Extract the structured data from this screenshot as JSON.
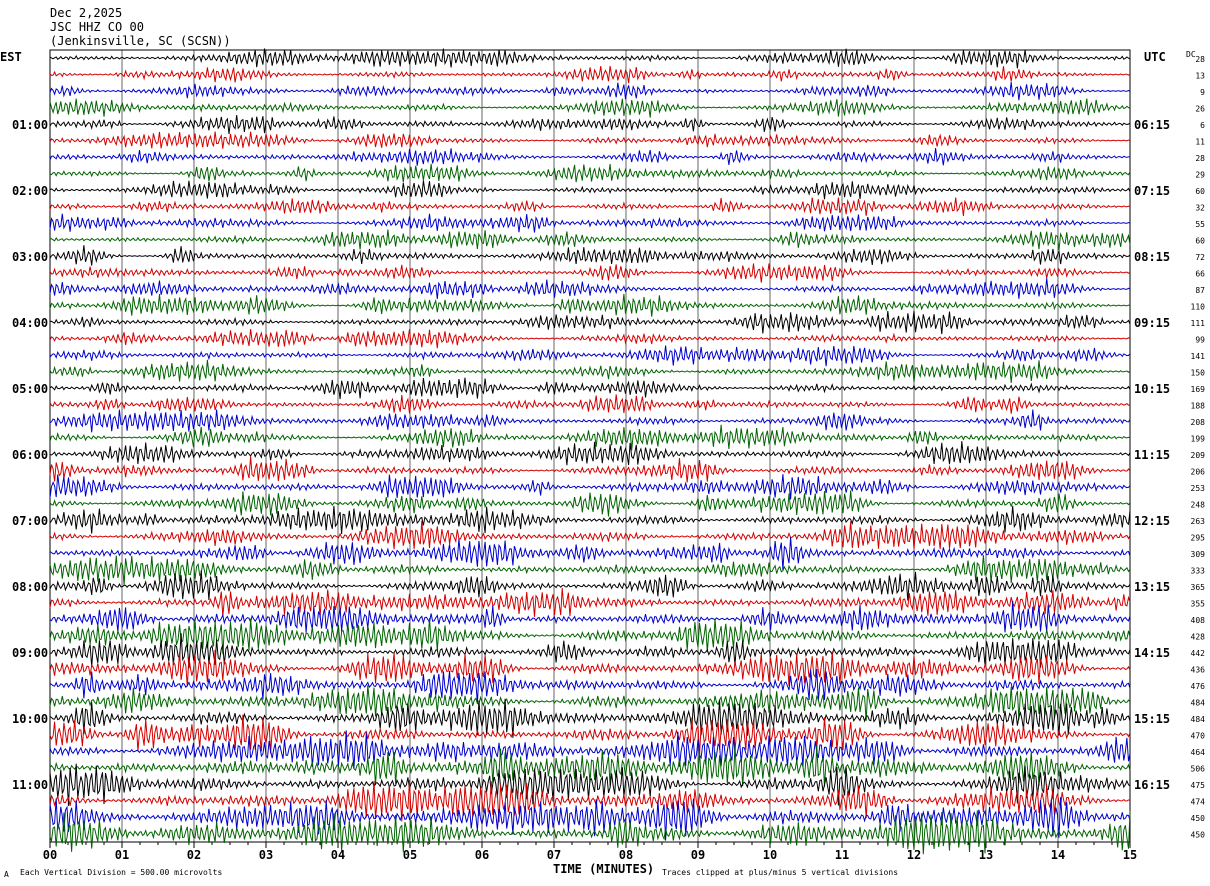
{
  "header": {
    "date": "Dec 2,2025",
    "station": "JSC HHZ CO 00",
    "location": "(Jenkinsville, SC (SCSN))"
  },
  "left_tz": "EST",
  "right_tz": "UTC",
  "dc_label": "DC",
  "footer": {
    "scale_note": "Each Vertical Division =  500.00 microvolts",
    "x_axis_title": "TIME (MINUTES)",
    "clip_note": "Traces clipped at plus/minus 5 vertical divisions",
    "corner_mark": "A"
  },
  "colors": {
    "trace_cycle": [
      "#000000",
      "#d40000",
      "#0000cc",
      "#006400"
    ],
    "grid": "#000000"
  },
  "chart_data": {
    "type": "line",
    "subtype": "helicorder",
    "x_ticks": [
      "00",
      "01",
      "02",
      "03",
      "04",
      "05",
      "06",
      "07",
      "08",
      "09",
      "10",
      "11",
      "12",
      "13",
      "14",
      "15"
    ],
    "xlim": [
      0,
      15
    ],
    "row_minutes": 15,
    "rows": 48,
    "left_labels": [
      {
        "row": 4,
        "text": "01:00"
      },
      {
        "row": 8,
        "text": "02:00"
      },
      {
        "row": 12,
        "text": "03:00"
      },
      {
        "row": 16,
        "text": "04:00"
      },
      {
        "row": 20,
        "text": "05:00"
      },
      {
        "row": 24,
        "text": "06:00"
      },
      {
        "row": 28,
        "text": "07:00"
      },
      {
        "row": 32,
        "text": "08:00"
      },
      {
        "row": 36,
        "text": "09:00"
      },
      {
        "row": 40,
        "text": "10:00"
      },
      {
        "row": 44,
        "text": "11:00"
      }
    ],
    "right_labels": [
      {
        "row": 4,
        "text": "06:15"
      },
      {
        "row": 8,
        "text": "07:15"
      },
      {
        "row": 12,
        "text": "08:15"
      },
      {
        "row": 16,
        "text": "09:15"
      },
      {
        "row": 20,
        "text": "10:15"
      },
      {
        "row": 24,
        "text": "11:15"
      },
      {
        "row": 28,
        "text": "12:15"
      },
      {
        "row": 32,
        "text": "13:15"
      },
      {
        "row": 36,
        "text": "14:15"
      },
      {
        "row": 40,
        "text": "15:15"
      },
      {
        "row": 44,
        "text": "16:15"
      }
    ],
    "dc_offsets": [
      28,
      13,
      9,
      26,
      6,
      11,
      28,
      29,
      60,
      32,
      55,
      60,
      72,
      66,
      87,
      110,
      111,
      99,
      141,
      150,
      169,
      188,
      208,
      199,
      209,
      206,
      253,
      248,
      263,
      295,
      309,
      333,
      365,
      355,
      408,
      428,
      442,
      436,
      476,
      484,
      484,
      470,
      464,
      506,
      475,
      474,
      450,
      450
    ],
    "trace_amplitude": [
      0.3,
      0.28,
      0.28,
      0.3,
      0.3,
      0.28,
      0.28,
      0.3,
      0.3,
      0.3,
      0.3,
      0.32,
      0.32,
      0.3,
      0.3,
      0.34,
      0.34,
      0.3,
      0.32,
      0.34,
      0.34,
      0.34,
      0.36,
      0.36,
      0.38,
      0.4,
      0.4,
      0.42,
      0.44,
      0.46,
      0.48,
      0.44,
      0.46,
      0.48,
      0.5,
      0.52,
      0.52,
      0.54,
      0.56,
      0.58,
      0.6,
      0.6,
      0.62,
      0.66,
      0.64,
      0.66,
      0.7,
      0.72
    ]
  }
}
